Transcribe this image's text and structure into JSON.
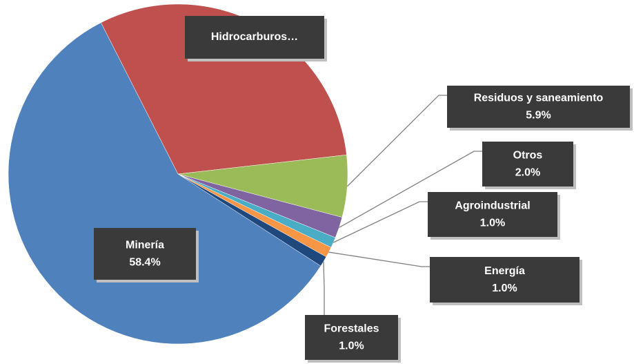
{
  "chart_data": {
    "type": "pie",
    "categories": [
      "Hidrocarburos…",
      "Residuos y saneamiento",
      "Otros",
      "Agroindustrial",
      "Energía",
      "Forestales",
      "Minería"
    ],
    "values": [
      30.7,
      5.9,
      2.0,
      1.0,
      1.0,
      1.0,
      58.4
    ],
    "value_labels": [
      null,
      "5.9%",
      "2.0%",
      "1.0%",
      "1.0%",
      "1.0%",
      "58.4%"
    ],
    "colors": [
      "#c0504d",
      "#9bbb59",
      "#8064a2",
      "#4bacc6",
      "#f79646",
      "#1f497d",
      "#4f81bd"
    ]
  }
}
